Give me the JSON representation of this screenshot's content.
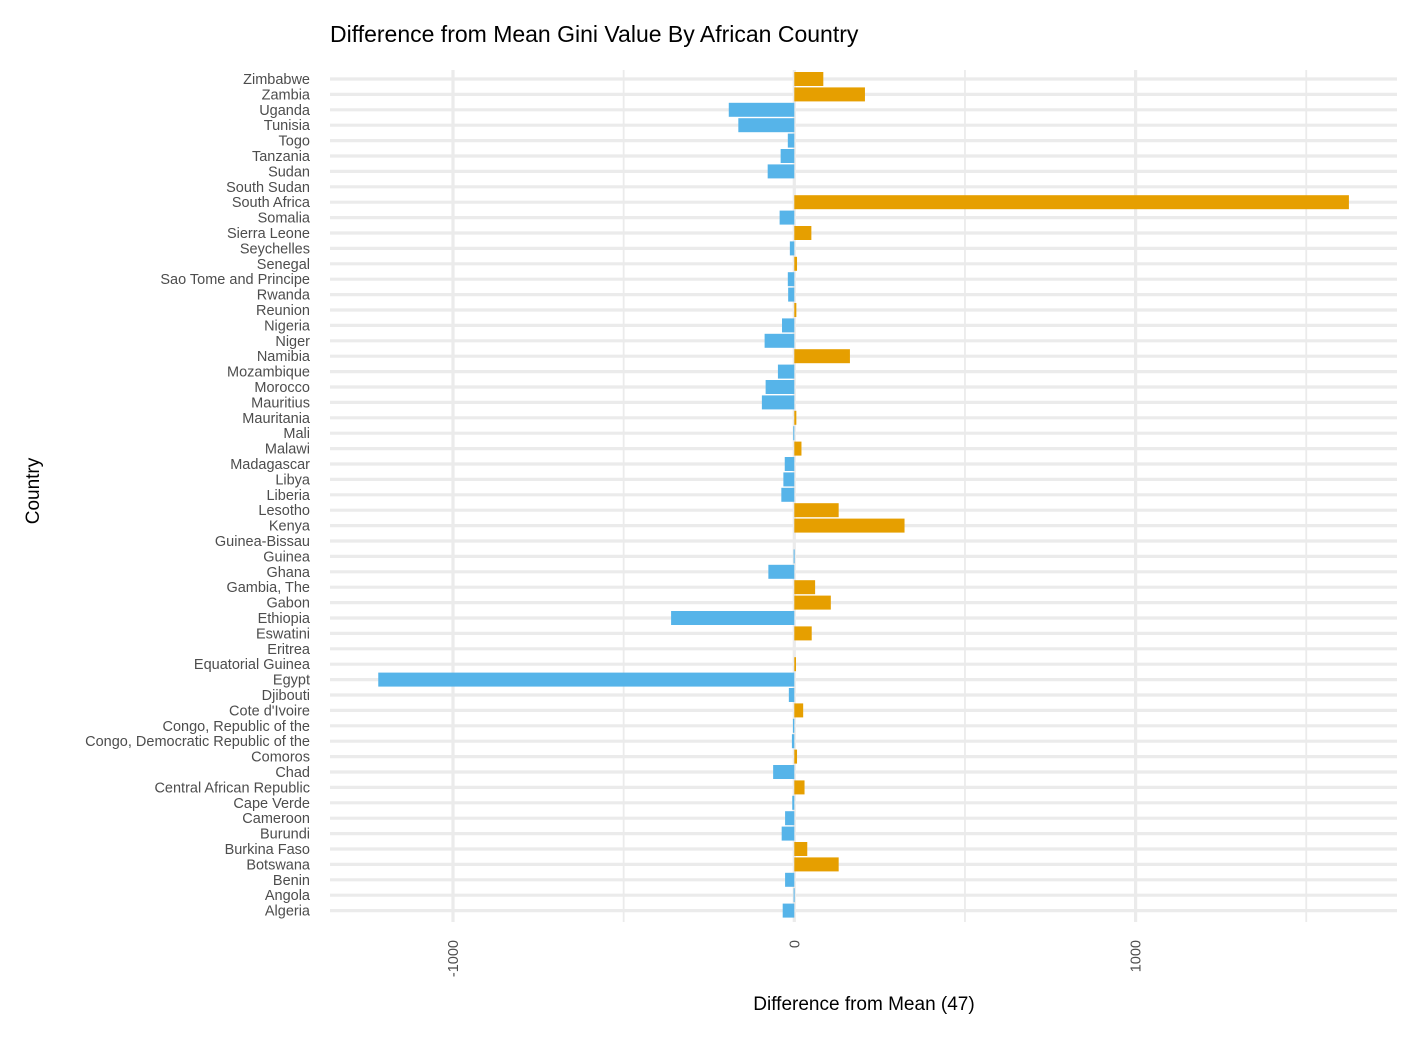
{
  "chart_data": {
    "type": "bar",
    "orientation": "horizontal",
    "title": "Difference from Mean Gini Value By African Country",
    "xlabel": "Difference from Mean (47)",
    "ylabel": "Country",
    "xlim": [
      -1360,
      1775
    ],
    "xticks": [
      -1000,
      0,
      1000
    ],
    "xtick_labels": [
      "-1000",
      "0",
      "1000"
    ],
    "grid": true,
    "legend": "none",
    "colors": {
      "positive": "#E69F00",
      "negative": "#56B4E9",
      "grid": "#EBEBEB"
    },
    "categories": [
      "Zimbabwe",
      "Zambia",
      "Uganda",
      "Tunisia",
      "Togo",
      "Tanzania",
      "Sudan",
      "South Sudan",
      "South Africa",
      "Somalia",
      "Sierra Leone",
      "Seychelles",
      "Senegal",
      "Sao Tome and Principe",
      "Rwanda",
      "Reunion",
      "Nigeria",
      "Niger",
      "Namibia",
      "Mozambique",
      "Morocco",
      "Mauritius",
      "Mauritania",
      "Mali",
      "Malawi",
      "Madagascar",
      "Libya",
      "Liberia",
      "Lesotho",
      "Kenya",
      "Guinea-Bissau",
      "Guinea",
      "Ghana",
      "Gambia, The",
      "Gabon",
      "Ethiopia",
      "Eswatini",
      "Eritrea",
      "Equatorial Guinea",
      "Egypt",
      "Djibouti",
      "Cote d'Ivoire",
      "Congo, Republic of the",
      "Congo, Democratic Republic of the",
      "Comoros",
      "Chad",
      "Central African Republic",
      "Cape Verde",
      "Cameroon",
      "Burundi",
      "Burkina Faso",
      "Botswana",
      "Benin",
      "Angola",
      "Algeria"
    ],
    "values": [
      85,
      207,
      -192,
      -164,
      -19,
      -40,
      -78,
      0,
      1625,
      -43,
      50,
      -13,
      8,
      -19,
      -18,
      6,
      -36,
      -87,
      163,
      -48,
      -84,
      -95,
      6,
      -3,
      21,
      -28,
      -32,
      -38,
      130,
      323,
      0,
      -2,
      -76,
      61,
      107,
      -361,
      51,
      0,
      5,
      -1219,
      -16,
      26,
      -4,
      -7,
      8,
      -62,
      30,
      -6,
      -27,
      -37,
      38,
      130,
      -27,
      -2,
      -34
    ]
  }
}
